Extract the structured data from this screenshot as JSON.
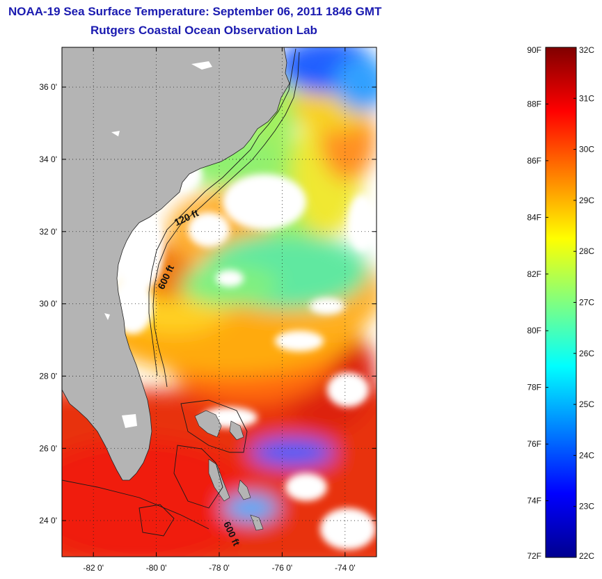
{
  "title": {
    "line1": "NOAA-19 Sea Surface Temperature:  September 06, 2011 1846 GMT",
    "line2": "Rutgers Coastal Ocean Observation Lab"
  },
  "map": {
    "lon_range": [
      -83,
      -73
    ],
    "lat_range": [
      23,
      37.1
    ],
    "lon_ticks": [
      {
        "value": -82,
        "label": "-82 0'"
      },
      {
        "value": -80,
        "label": "-80 0'"
      },
      {
        "value": -78,
        "label": "-78 0'"
      },
      {
        "value": -76,
        "label": "-76 0'"
      },
      {
        "value": -74,
        "label": "-74 0'"
      }
    ],
    "lat_ticks": [
      {
        "value": 24,
        "label": "24 0'"
      },
      {
        "value": 26,
        "label": "26 0'"
      },
      {
        "value": 28,
        "label": "28 0'"
      },
      {
        "value": 30,
        "label": "30 0'"
      },
      {
        "value": 32,
        "label": "32 0'"
      },
      {
        "value": 34,
        "label": "34 0'"
      },
      {
        "value": 36,
        "label": "36 0'"
      }
    ],
    "contour_labels": [
      {
        "text": "120 ft",
        "lon": -79.0,
        "lat": 32.3,
        "rotate": -25
      },
      {
        "text": "600 ft",
        "lon": -79.6,
        "lat": 30.7,
        "rotate": -65
      },
      {
        "text": "600 ft",
        "lon": -77.7,
        "lat": 23.6,
        "rotate": 65
      }
    ],
    "land_color": "#b4b4b4"
  },
  "colorbar": {
    "fahrenheit_labels": [
      "90F",
      "88F",
      "86F",
      "84F",
      "82F",
      "80F",
      "78F",
      "76F",
      "74F",
      "72F"
    ],
    "celsius_labels": [
      "32C",
      "31C",
      "30C",
      "29C",
      "28C",
      "27C",
      "26C",
      "25C",
      "24C",
      "23C",
      "22C"
    ],
    "range_c": [
      22,
      32
    ],
    "colors": [
      "#00008f",
      "#0000ff",
      "#0080ff",
      "#00ffff",
      "#80ff80",
      "#ffff00",
      "#ff8000",
      "#ff0000",
      "#800000"
    ]
  }
}
